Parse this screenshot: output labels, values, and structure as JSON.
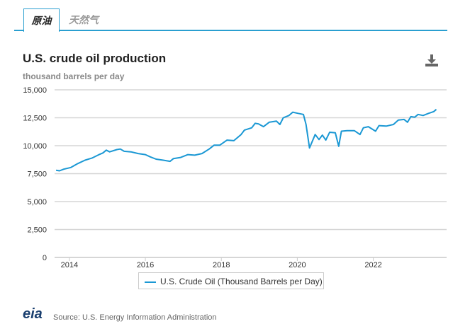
{
  "tabs": [
    {
      "label": "原油",
      "active": true
    },
    {
      "label": "天然气",
      "active": false
    }
  ],
  "download_icon": "download-icon",
  "logo_text": "eia",
  "source": "Source: U.S. Energy Information Administration",
  "chart_data": {
    "type": "line",
    "title": "U.S. crude oil production",
    "ylabel": "thousand barrels per day",
    "xlabel": "",
    "ylim": [
      0,
      15000
    ],
    "xlim": [
      2013.61,
      2023.93
    ],
    "yticks": [
      0,
      2500,
      5000,
      7500,
      10000,
      12500,
      15000
    ],
    "ytick_labels": [
      "0",
      "2,500",
      "5,000",
      "7,500",
      "10,000",
      "12,500",
      "15,000"
    ],
    "xticks": [
      2014,
      2016,
      2018,
      2020,
      2022
    ],
    "xtick_labels": [
      "2014",
      "2016",
      "2018",
      "2020",
      "2022"
    ],
    "grid": true,
    "legend_position": "bottom",
    "color": "#1b98d4",
    "series": [
      {
        "name": "U.S. Crude Oil (Thousand Barrels per Day)",
        "x": [
          2013.65,
          2013.74,
          2013.85,
          2014.04,
          2014.22,
          2014.41,
          2014.6,
          2014.78,
          2014.88,
          2014.97,
          2015.06,
          2015.25,
          2015.34,
          2015.44,
          2015.62,
          2015.81,
          2016.0,
          2016.13,
          2016.28,
          2016.47,
          2016.65,
          2016.74,
          2016.93,
          2017.12,
          2017.3,
          2017.49,
          2017.68,
          2017.81,
          2017.96,
          2018.15,
          2018.33,
          2018.52,
          2018.61,
          2018.8,
          2018.89,
          2018.98,
          2019.11,
          2019.26,
          2019.45,
          2019.54,
          2019.63,
          2019.78,
          2019.88,
          2020.01,
          2020.16,
          2020.23,
          2020.32,
          2020.47,
          2020.57,
          2020.66,
          2020.75,
          2020.85,
          2021.0,
          2021.09,
          2021.16,
          2021.31,
          2021.5,
          2021.65,
          2021.74,
          2021.87,
          2022.06,
          2022.15,
          2022.34,
          2022.53,
          2022.66,
          2022.81,
          2022.9,
          2022.99,
          2023.09,
          2023.18,
          2023.31,
          2023.46,
          2023.59,
          2023.66
        ],
        "values": [
          7800,
          7750,
          7900,
          8050,
          8400,
          8700,
          8900,
          9200,
          9350,
          9600,
          9450,
          9650,
          9700,
          9500,
          9450,
          9300,
          9200,
          9000,
          8800,
          8700,
          8600,
          8850,
          8950,
          9200,
          9150,
          9300,
          9700,
          10050,
          10050,
          10500,
          10450,
          11000,
          11400,
          11600,
          12000,
          11950,
          11700,
          12100,
          12200,
          11900,
          12500,
          12700,
          13000,
          12900,
          12800,
          11900,
          9800,
          11000,
          10550,
          10950,
          10500,
          11200,
          11150,
          9950,
          11300,
          11350,
          11350,
          11000,
          11600,
          11700,
          11300,
          11800,
          11750,
          11900,
          12300,
          12350,
          12100,
          12600,
          12550,
          12800,
          12700,
          12900,
          13050,
          13250
        ]
      }
    ]
  }
}
